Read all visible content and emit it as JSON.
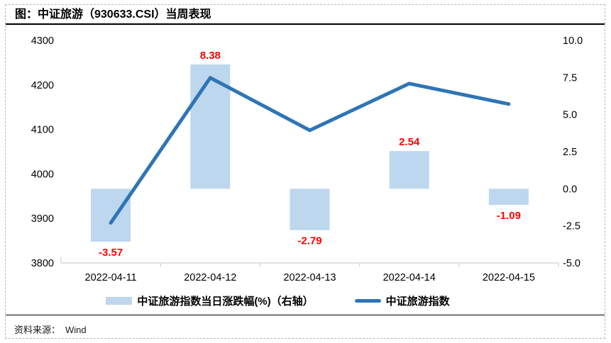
{
  "figure": {
    "title": "图：中证旅游（930633.CSI）当周表现",
    "source_label": "资料来源：",
    "source_value": "Wind"
  },
  "legend": {
    "items": [
      {
        "label": "中证旅游指数当日涨跌幅(%)（右轴）",
        "swatch": "bar-swatch"
      },
      {
        "label": "中证旅游指数",
        "swatch": "line-swatch"
      }
    ]
  },
  "colors": {
    "bar_fill": "#BDD7EE",
    "line_stroke": "#2E75B6",
    "value_label": "#FF0000",
    "axis_line": "#D9D9D9",
    "tick_text": "#000000"
  },
  "chart_data": {
    "type": "combo (bar + line)",
    "title": "图：中证旅游（930633.CSI）当周表现",
    "categories": [
      "2022-04-11",
      "2022-04-12",
      "2022-04-13",
      "2022-04-14",
      "2022-04-15"
    ],
    "series": [
      {
        "name": "中证旅游指数当日涨跌幅(%)（右轴）",
        "type": "bar",
        "axis": "right",
        "values": [
          -3.57,
          8.38,
          -2.79,
          2.54,
          -1.09
        ]
      },
      {
        "name": "中证旅游指数",
        "type": "line",
        "axis": "left",
        "values": [
          3890,
          4216,
          4098,
          4203,
          4157
        ]
      }
    ],
    "value_labels": [
      "-3.57",
      "8.38",
      "-2.79",
      "2.54",
      "-1.09"
    ],
    "left_axis": {
      "min": 3800,
      "max": 4300,
      "ticks": [
        "4300",
        "4200",
        "4100",
        "4000",
        "3900",
        "3800"
      ]
    },
    "right_axis": {
      "min": -5.0,
      "max": 10.0,
      "ticks": [
        "10.0",
        "7.5",
        "5.0",
        "2.5",
        "0.0",
        "-2.5",
        "-5.0"
      ]
    },
    "grid": false,
    "legend_position": "bottom"
  }
}
